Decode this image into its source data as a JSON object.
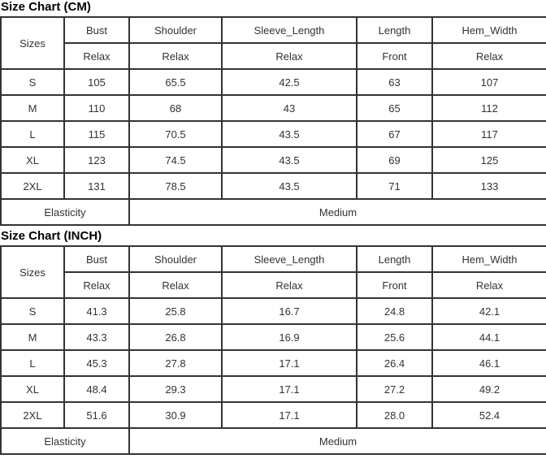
{
  "colors": {
    "border": "#333333",
    "text": "#333333",
    "title": "#000000",
    "background": "#ffffff"
  },
  "tables": [
    {
      "title": "Size Chart (CM)",
      "header": {
        "sizes": "Sizes",
        "cols": [
          "Bust",
          "Shoulder",
          "Sleeve_Length",
          "Length",
          "Hem_Width"
        ],
        "sub": [
          "Relax",
          "Relax",
          "Relax",
          "Front",
          "Relax"
        ]
      },
      "rows": [
        [
          "S",
          "105",
          "65.5",
          "42.5",
          "63",
          "107"
        ],
        [
          "M",
          "110",
          "68",
          "43",
          "65",
          "112"
        ],
        [
          "L",
          "115",
          "70.5",
          "43.5",
          "67",
          "117"
        ],
        [
          "XL",
          "123",
          "74.5",
          "43.5",
          "69",
          "125"
        ],
        [
          "2XL",
          "131",
          "78.5",
          "43.5",
          "71",
          "133"
        ]
      ],
      "footer": {
        "label": "Elasticity",
        "value": "Medium"
      }
    },
    {
      "title": "Size Chart (INCH)",
      "header": {
        "sizes": "Sizes",
        "cols": [
          "Bust",
          "Shoulder",
          "Sleeve_Length",
          "Length",
          "Hem_Width"
        ],
        "sub": [
          "Relax",
          "Relax",
          "Relax",
          "Front",
          "Relax"
        ]
      },
      "rows": [
        [
          "S",
          "41.3",
          "25.8",
          "16.7",
          "24.8",
          "42.1"
        ],
        [
          "M",
          "43.3",
          "26.8",
          "16.9",
          "25.6",
          "44.1"
        ],
        [
          "L",
          "45.3",
          "27.8",
          "17.1",
          "26.4",
          "46.1"
        ],
        [
          "XL",
          "48.4",
          "29.3",
          "17.1",
          "27.2",
          "49.2"
        ],
        [
          "2XL",
          "51.6",
          "30.9",
          "17.1",
          "28.0",
          "52.4"
        ]
      ],
      "footer": {
        "label": "Elasticity",
        "value": "Medium"
      }
    }
  ]
}
